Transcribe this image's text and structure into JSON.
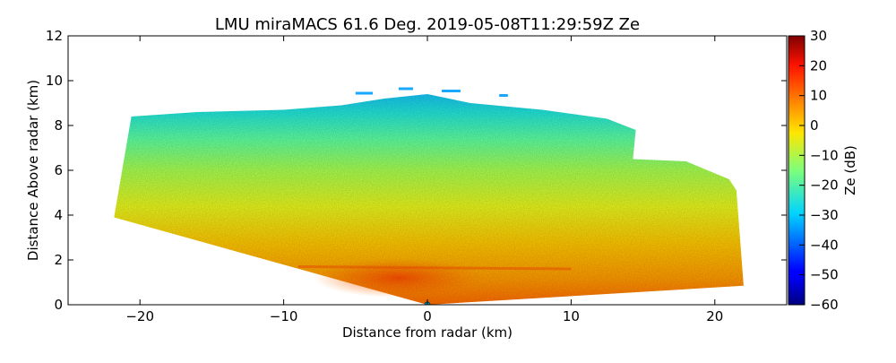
{
  "chart_data": {
    "type": "heatmap",
    "title": "LMU miraMACS 61.6 Deg. 2019-05-08T11:29:59Z  Ze",
    "xlabel": "Distance from radar (km)",
    "ylabel": "Distance Above radar  (km)",
    "xlim": [
      -25,
      25
    ],
    "ylim": [
      0,
      12
    ],
    "xticks": [
      -20,
      -10,
      0,
      10,
      20
    ],
    "yticks": [
      0,
      2,
      4,
      6,
      8,
      10,
      12
    ],
    "colorbar": {
      "label": "Ze (dB)",
      "range": [
        -60,
        30
      ],
      "ticks": [
        -60,
        -50,
        -40,
        -30,
        -20,
        -10,
        0,
        10,
        20,
        30
      ],
      "colormap": "jet"
    },
    "scan": {
      "elevation_deg": 61.6,
      "left_edge_bottom": [
        -21.8,
        3.9
      ],
      "left_edge_top": [
        -20.6,
        8.4
      ],
      "right_edge_bottom": [
        22.0,
        0.85
      ],
      "right_edge_top": [
        21.5,
        5.1
      ],
      "max_height_km": 9.7
    },
    "reflectivity_layers": [
      {
        "height_range_km": [
          0,
          2
        ],
        "ze_db": 10
      },
      {
        "height_range_km": [
          2,
          4
        ],
        "ze_db": 0
      },
      {
        "height_range_km": [
          4,
          6
        ],
        "ze_db": -8
      },
      {
        "height_range_km": [
          6,
          8
        ],
        "ze_db": -20
      },
      {
        "height_range_km": [
          8,
          9.7
        ],
        "ze_db": -27
      }
    ]
  }
}
